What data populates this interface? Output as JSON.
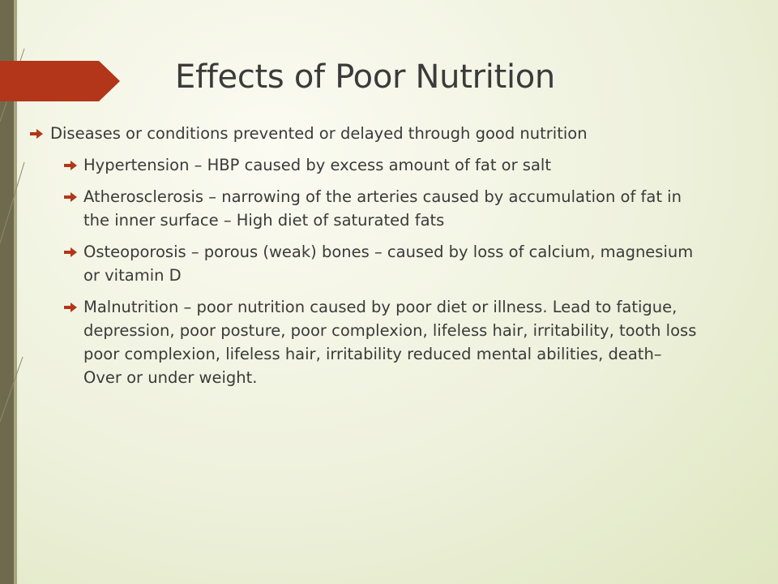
{
  "title": "Effects of Poor Nutrition",
  "bullets": [
    {
      "text": "Diseases or conditions prevented or delayed through good nutrition",
      "sub_bullets": [
        "Hypertension – HBP caused by excess amount of fat or salt",
        "Atherosclerosis – narrowing of the arteries caused by accumulation of fat in the inner surface – High diet of saturated fats",
        "Osteoporosis – porous (weak) bones – caused by loss of calcium, magnesium or vitamin D",
        "Malnutrition – poor nutrition caused by poor diet or illness. Lead to fatigue, depression, poor posture, poor complexion, lifeless hair, irritability, tooth loss poor complexion, lifeless hair, irritability reduced mental abilities, death– Over or under weight."
      ]
    }
  ]
}
